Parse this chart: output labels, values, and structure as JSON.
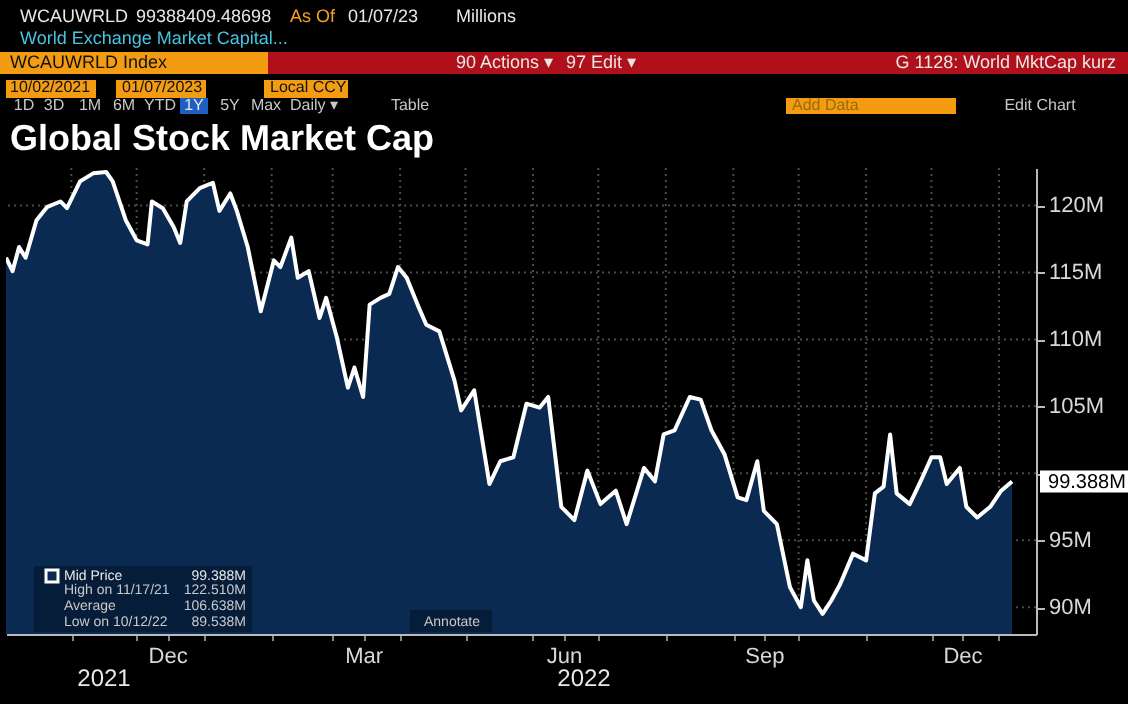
{
  "chart_data": {
    "type": "area",
    "title": "Global Stock Market Cap",
    "x": [
      "2021-10-02",
      "2021-10-05",
      "2021-10-08",
      "2021-10-11",
      "2021-10-16",
      "2021-10-21",
      "2021-10-27",
      "2021-10-30",
      "2021-11-05",
      "2021-11-11",
      "2021-11-17",
      "2021-11-20",
      "2021-11-26",
      "2021-12-01",
      "2021-12-06",
      "2021-12-08",
      "2021-12-13",
      "2021-12-18",
      "2021-12-21",
      "2021-12-24",
      "2021-12-30",
      "2022-01-05",
      "2022-01-08",
      "2022-01-13",
      "2022-01-16",
      "2022-01-21",
      "2022-01-27",
      "2022-02-02",
      "2022-02-05",
      "2022-02-10",
      "2022-02-13",
      "2022-02-18",
      "2022-02-23",
      "2022-02-26",
      "2022-03-03",
      "2022-03-08",
      "2022-03-11",
      "2022-03-15",
      "2022-03-18",
      "2022-03-23",
      "2022-03-27",
      "2022-03-31",
      "2022-04-04",
      "2022-04-09",
      "2022-04-13",
      "2022-04-19",
      "2022-04-26",
      "2022-04-29",
      "2022-05-05",
      "2022-05-08",
      "2022-05-12",
      "2022-05-17",
      "2022-05-23",
      "2022-05-29",
      "2022-06-04",
      "2022-06-08",
      "2022-06-14",
      "2022-06-20",
      "2022-06-26",
      "2022-07-02",
      "2022-07-09",
      "2022-07-14",
      "2022-07-22",
      "2022-07-27",
      "2022-07-31",
      "2022-08-05",
      "2022-08-12",
      "2022-08-17",
      "2022-08-22",
      "2022-08-28",
      "2022-09-03",
      "2022-09-07",
      "2022-09-12",
      "2022-09-15",
      "2022-09-21",
      "2022-09-27",
      "2022-10-02",
      "2022-10-05",
      "2022-10-08",
      "2022-10-12",
      "2022-10-16",
      "2022-10-20",
      "2022-10-26",
      "2022-11-01",
      "2022-11-05",
      "2022-11-09",
      "2022-11-12",
      "2022-11-15",
      "2022-11-21",
      "2022-11-26",
      "2022-12-01",
      "2022-12-05",
      "2022-12-08",
      "2022-12-14",
      "2022-12-17",
      "2022-12-22",
      "2022-12-28",
      "2023-01-02",
      "2023-01-07"
    ],
    "series": [
      {
        "name": "Mid Price",
        "color": "#0a2a52",
        "values": [
          116.1,
          115.1,
          116.9,
          116.1,
          118.9,
          119.9,
          120.3,
          119.8,
          121.8,
          122.4,
          122.5,
          121.8,
          118.9,
          117.4,
          117.1,
          120.3,
          119.8,
          118.4,
          117.2,
          120.3,
          121.3,
          121.7,
          119.6,
          120.9,
          119.6,
          116.9,
          112.1,
          115.9,
          115.4,
          117.6,
          114.6,
          115.1,
          111.6,
          113.1,
          110.1,
          106.4,
          107.9,
          105.7,
          112.6,
          113.1,
          113.4,
          115.4,
          114.6,
          112.6,
          111.1,
          110.6,
          106.9,
          104.7,
          106.2,
          103.2,
          99.2,
          100.9,
          101.2,
          105.2,
          104.9,
          105.7,
          97.5,
          96.5,
          100.2,
          97.7,
          98.7,
          96.2,
          100.4,
          99.4,
          102.9,
          103.2,
          105.7,
          105.5,
          103.2,
          101.4,
          98.2,
          98.0,
          100.9,
          97.2,
          96.2,
          91.5,
          90.0,
          93.5,
          90.5,
          89.5,
          90.5,
          91.7,
          94.0,
          93.5,
          98.5,
          99.0,
          102.9,
          98.5,
          97.7,
          99.4,
          101.2,
          101.2,
          99.2,
          100.4,
          97.5,
          96.7,
          97.5,
          98.7,
          99.388
        ]
      }
    ],
    "xlim": [
      "2021-10-02",
      "2023-01-18"
    ],
    "xticks": [
      {
        "value": "2021-11-01",
        "label": null
      },
      {
        "value": "2021-12-01",
        "label": null
      },
      {
        "value": "2021-12-15",
        "label": "Dec"
      },
      {
        "value": "2022-01-01",
        "label": null
      },
      {
        "value": "2022-02-01",
        "label": null
      },
      {
        "value": "2022-03-01",
        "label": null
      },
      {
        "value": "2022-03-15",
        "label": "Mar"
      },
      {
        "value": "2022-04-01",
        "label": null
      },
      {
        "value": "2022-05-01",
        "label": null
      },
      {
        "value": "2022-06-01",
        "label": null
      },
      {
        "value": "2022-06-15",
        "label": "Jun"
      },
      {
        "value": "2022-07-01",
        "label": null
      },
      {
        "value": "2022-08-01",
        "label": null
      },
      {
        "value": "2022-09-01",
        "label": null
      },
      {
        "value": "2022-09-15",
        "label": "Sep"
      },
      {
        "value": "2022-10-01",
        "label": null
      },
      {
        "value": "2022-11-01",
        "label": null
      },
      {
        "value": "2022-12-01",
        "label": null
      },
      {
        "value": "2022-12-15",
        "label": "Dec"
      },
      {
        "value": "2023-01-01",
        "label": null
      }
    ],
    "ylim": [
      88,
      122.8
    ],
    "yticks": [
      {
        "value": 90,
        "label": "90M"
      },
      {
        "value": 95,
        "label": "95M"
      },
      {
        "value": 100,
        "label": null
      },
      {
        "value": 105,
        "label": "105M"
      },
      {
        "value": 110,
        "label": "110M"
      },
      {
        "value": 115,
        "label": "115M"
      },
      {
        "value": 120,
        "label": "120M"
      }
    ],
    "grid": true,
    "legend": "bottom left",
    "annotations": [
      "WCAUWRLD",
      "99388409.48698",
      "As Of",
      "01/07/23",
      "Millions",
      "World Exchange Market Capital...",
      "WCAUWRLD Index",
      "90 Actions ▾",
      "97 Edit ▾",
      "G 1128: World MktCap kurz",
      "10/02/2021",
      "01/07/2023",
      "Local CCY",
      "1D",
      "3D",
      "1M",
      "6M",
      "YTD",
      "1Y",
      "5Y",
      "Max",
      "Daily ▾",
      "Table",
      "Add Data",
      "Edit Chart",
      "99.388M",
      "High on 11/17/21",
      "122.510M",
      "Average",
      "106.638M",
      "Low on 10/12/22",
      "89.538M",
      "Annotate",
      "2021",
      "2022",
      {
        "text": "99.388M",
        "x": "2023-01-07",
        "y": 99.388
      }
    ]
  }
}
